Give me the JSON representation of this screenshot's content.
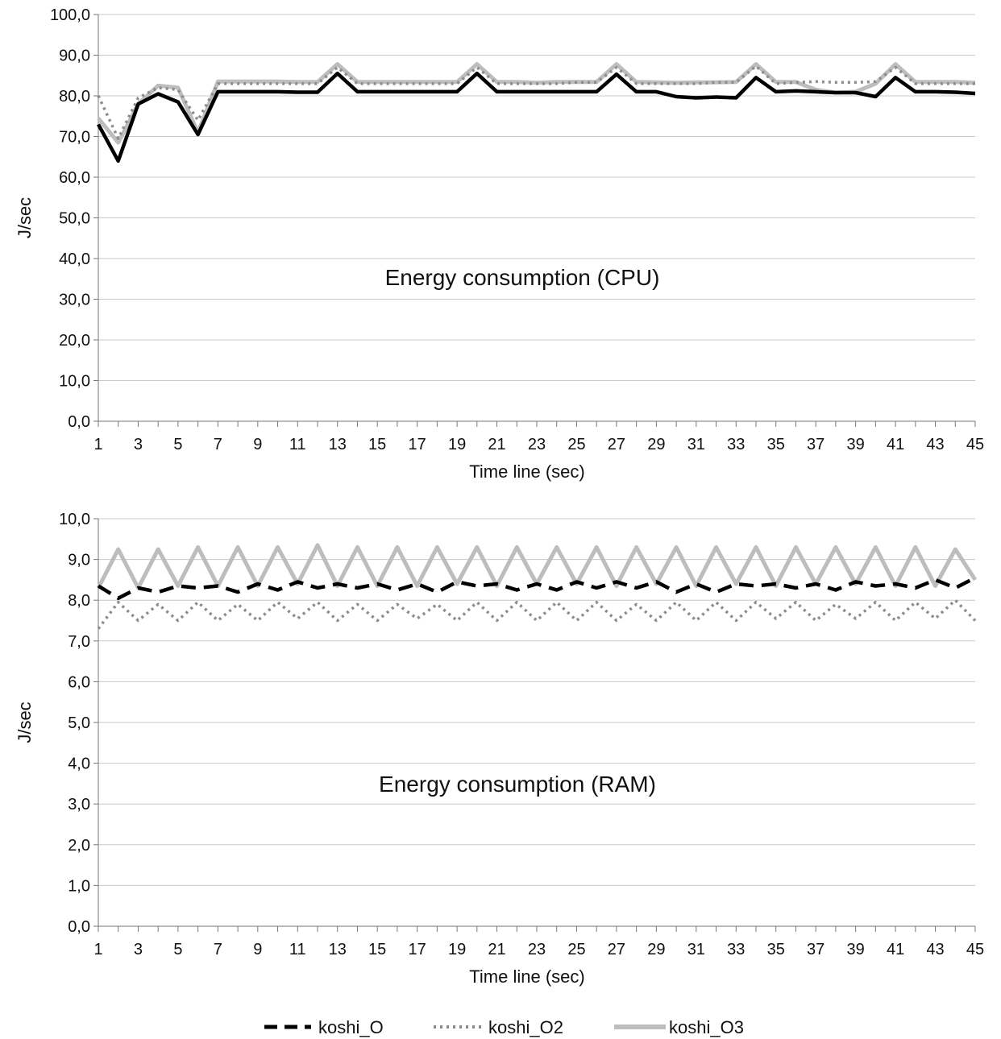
{
  "chart_data": [
    {
      "type": "line",
      "title": "Energy consumption (CPU)",
      "xlabel": "Time line (sec)",
      "ylabel": "J/sec",
      "ylim": [
        0,
        100
      ],
      "ytick_labels": [
        "0,0",
        "10,0",
        "20,0",
        "30,0",
        "40,0",
        "50,0",
        "60,0",
        "70,0",
        "80,0",
        "90,0",
        "100,0"
      ],
      "xlim": [
        1,
        45
      ],
      "xtick_labels": [
        "1",
        "3",
        "5",
        "7",
        "9",
        "11",
        "13",
        "15",
        "17",
        "19",
        "21",
        "23",
        "25",
        "27",
        "29",
        "31",
        "33",
        "35",
        "37",
        "39",
        "41",
        "43",
        "45"
      ],
      "grid": true,
      "x": [
        1,
        2,
        3,
        4,
        5,
        6,
        7,
        8,
        9,
        10,
        11,
        12,
        13,
        14,
        15,
        16,
        17,
        18,
        19,
        20,
        21,
        22,
        23,
        24,
        25,
        26,
        27,
        28,
        29,
        30,
        31,
        32,
        33,
        34,
        35,
        36,
        37,
        38,
        39,
        40,
        41,
        42,
        43,
        44,
        45
      ],
      "series": [
        {
          "name": "koshi_O",
          "values": [
            73,
            64,
            78,
            80.5,
            78.5,
            70.5,
            81,
            81,
            81,
            81,
            80.9,
            80.9,
            85.5,
            81,
            81,
            81,
            81,
            81,
            81,
            85.5,
            81,
            81,
            81,
            81,
            81,
            81,
            85.3,
            81,
            81,
            79.8,
            79.5,
            79.7,
            79.5,
            84.5,
            81,
            81.2,
            81,
            80.8,
            80.8,
            79.8,
            84.5,
            81,
            81,
            80.9,
            80.6
          ]
        },
        {
          "name": "koshi_O2",
          "values": [
            80,
            69.5,
            79.5,
            82,
            81.5,
            74,
            83,
            83,
            83,
            83,
            83,
            83,
            87,
            83,
            83,
            83,
            83,
            83,
            83,
            87,
            83,
            83,
            83,
            83,
            83.3,
            83.3,
            87,
            83,
            83,
            83,
            83,
            83.3,
            83.3,
            87.3,
            83,
            83.3,
            83.5,
            83.3,
            83.3,
            83.5,
            87,
            83,
            83,
            83,
            83
          ]
        },
        {
          "name": "koshi_O3",
          "values": [
            74.5,
            68.5,
            78,
            82.5,
            82,
            71,
            83.5,
            83.5,
            83.5,
            83.5,
            83.4,
            83.4,
            87.8,
            83.4,
            83.4,
            83.4,
            83.4,
            83.4,
            83.4,
            87.8,
            83.4,
            83.4,
            83.2,
            83.4,
            83.4,
            83.4,
            87.8,
            83.4,
            83.3,
            83.2,
            83.3,
            83.3,
            83.4,
            87.8,
            83.4,
            83.4,
            81.5,
            80.8,
            81,
            83,
            87.8,
            83.4,
            83.4,
            83.4,
            83.2
          ]
        }
      ]
    },
    {
      "type": "line",
      "title": "Energy consumption (RAM)",
      "xlabel": "Time line (sec)",
      "ylabel": "J/sec",
      "ylim": [
        0,
        10
      ],
      "ytick_labels": [
        "0,0",
        "1,0",
        "2,0",
        "3,0",
        "4,0",
        "5,0",
        "6,0",
        "7,0",
        "8,0",
        "9,0",
        "10,0"
      ],
      "xlim": [
        1,
        45
      ],
      "xtick_labels": [
        "1",
        "3",
        "5",
        "7",
        "9",
        "11",
        "13",
        "15",
        "17",
        "19",
        "21",
        "23",
        "25",
        "27",
        "29",
        "31",
        "33",
        "35",
        "37",
        "39",
        "41",
        "43",
        "45"
      ],
      "grid": true,
      "x": [
        1,
        2,
        3,
        4,
        5,
        6,
        7,
        8,
        9,
        10,
        11,
        12,
        13,
        14,
        15,
        16,
        17,
        18,
        19,
        20,
        21,
        22,
        23,
        24,
        25,
        26,
        27,
        28,
        29,
        30,
        31,
        32,
        33,
        34,
        35,
        36,
        37,
        38,
        39,
        40,
        41,
        42,
        43,
        44,
        45
      ],
      "series": [
        {
          "name": "koshi_O",
          "values": [
            8.35,
            8.05,
            8.3,
            8.2,
            8.35,
            8.3,
            8.35,
            8.2,
            8.4,
            8.25,
            8.45,
            8.3,
            8.4,
            8.3,
            8.4,
            8.25,
            8.4,
            8.2,
            8.45,
            8.35,
            8.4,
            8.25,
            8.4,
            8.25,
            8.45,
            8.3,
            8.45,
            8.3,
            8.45,
            8.2,
            8.4,
            8.2,
            8.4,
            8.35,
            8.4,
            8.3,
            8.4,
            8.25,
            8.45,
            8.35,
            8.4,
            8.3,
            8.5,
            8.3,
            8.55
          ]
        },
        {
          "name": "koshi_O2",
          "values": [
            7.3,
            7.95,
            7.5,
            7.9,
            7.5,
            7.95,
            7.5,
            7.9,
            7.5,
            7.95,
            7.55,
            7.95,
            7.5,
            7.9,
            7.5,
            7.9,
            7.55,
            7.9,
            7.5,
            7.95,
            7.5,
            7.95,
            7.5,
            7.95,
            7.5,
            7.95,
            7.5,
            7.9,
            7.5,
            7.95,
            7.5,
            7.95,
            7.5,
            7.95,
            7.55,
            7.95,
            7.5,
            7.9,
            7.55,
            7.95,
            7.5,
            7.95,
            7.55,
            8.0,
            7.5
          ]
        },
        {
          "name": "koshi_O3",
          "values": [
            8.3,
            9.25,
            8.3,
            9.25,
            8.35,
            9.3,
            8.35,
            9.3,
            8.35,
            9.3,
            8.4,
            9.35,
            8.35,
            9.3,
            8.35,
            9.3,
            8.35,
            9.3,
            8.4,
            9.3,
            8.35,
            9.3,
            8.4,
            9.3,
            8.4,
            9.3,
            8.35,
            9.3,
            8.4,
            9.3,
            8.35,
            9.3,
            8.4,
            9.3,
            8.35,
            9.3,
            8.4,
            9.3,
            8.4,
            9.3,
            8.35,
            9.3,
            8.35,
            9.25,
            8.5
          ]
        }
      ]
    }
  ],
  "legend": {
    "placement": "bottom-center",
    "items": [
      {
        "label": "koshi_O",
        "color": "#000000",
        "style": "dashed"
      },
      {
        "label": "koshi_O2",
        "color": "#8c8c8c",
        "style": "dotted"
      },
      {
        "label": "koshi_O3",
        "color": "#bdbdbd",
        "style": "solid"
      }
    ]
  }
}
